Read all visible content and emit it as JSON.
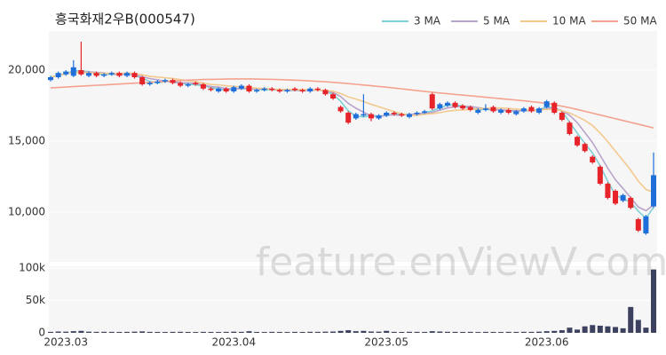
{
  "watermark": "feature.enViewV.com",
  "chart_data": [
    {
      "type": "candlestick",
      "title": "흥국화재2우B(000547)",
      "up_color": "#1e6fd9",
      "down_color": "#e8242b",
      "open": [
        19300,
        19500,
        19700,
        19600,
        20000,
        19600,
        19800,
        19600,
        19700,
        19800,
        19600,
        19800,
        19500,
        19000,
        19100,
        19200,
        19300,
        19100,
        18900,
        19100,
        19000,
        18700,
        18500,
        18700,
        18500,
        18700,
        18900,
        18500,
        18600,
        18700,
        18600,
        18500,
        18700,
        18600,
        18500,
        18700,
        18600,
        18300,
        17400,
        17000,
        16600,
        16800,
        16900,
        16600,
        16800,
        17000,
        16900,
        16700,
        16900,
        17000,
        18300,
        17300,
        17500,
        17700,
        17500,
        17400,
        17000,
        17200,
        17400,
        17000,
        17200,
        16900,
        17100,
        17400,
        17000,
        17400,
        17700,
        17000,
        16300,
        15300,
        14800,
        13900,
        13200,
        12000,
        11500,
        10800,
        11000,
        9500,
        8500,
        10400
      ],
      "high": [
        19600,
        19900,
        20000,
        20700,
        22000,
        19900,
        19900,
        19800,
        19900,
        19900,
        19900,
        19900,
        19600,
        19200,
        19300,
        19400,
        19400,
        19200,
        19100,
        19200,
        19100,
        18800,
        18800,
        18800,
        18900,
        19000,
        19000,
        18700,
        18800,
        18800,
        18700,
        18700,
        18800,
        18700,
        18800,
        18800,
        18700,
        18400,
        17500,
        17100,
        17000,
        18300,
        17000,
        16900,
        17100,
        17100,
        17000,
        17000,
        17100,
        17200,
        18400,
        17700,
        17800,
        17800,
        17600,
        17500,
        17300,
        17600,
        17500,
        17300,
        17300,
        17200,
        17400,
        17500,
        17400,
        17900,
        17800,
        17100,
        16400,
        15400,
        14900,
        14000,
        13300,
        12100,
        11600,
        11300,
        11100,
        9600,
        9800,
        14200
      ],
      "low": [
        19200,
        19400,
        19600,
        19500,
        19600,
        19500,
        19500,
        19500,
        19600,
        19500,
        19500,
        19400,
        18900,
        18900,
        19000,
        19100,
        19000,
        18800,
        18800,
        18900,
        18600,
        18500,
        18400,
        18400,
        18400,
        18600,
        18400,
        18400,
        18500,
        18500,
        18400,
        18400,
        18500,
        18400,
        18400,
        18500,
        18200,
        17900,
        17000,
        16200,
        16500,
        16700,
        16400,
        16500,
        16700,
        16800,
        16700,
        16600,
        16800,
        16900,
        17200,
        17200,
        17400,
        17300,
        17200,
        17100,
        16900,
        17100,
        17000,
        16900,
        16900,
        16800,
        17000,
        17000,
        16900,
        17300,
        16900,
        16400,
        15400,
        14600,
        14200,
        13400,
        11900,
        10900,
        10500,
        10700,
        10200,
        8600,
        8400,
        10300
      ],
      "close": [
        19500,
        19800,
        19900,
        20200,
        19700,
        19800,
        19600,
        19700,
        19800,
        19600,
        19800,
        19500,
        19000,
        19100,
        19200,
        19300,
        19100,
        18900,
        19000,
        19000,
        18700,
        18600,
        18700,
        18500,
        18800,
        18900,
        18500,
        18600,
        18700,
        18600,
        18500,
        18600,
        18600,
        18500,
        18700,
        18600,
        18300,
        18000,
        17100,
        16300,
        16900,
        16900,
        16600,
        16800,
        17000,
        16900,
        16800,
        16900,
        17000,
        17100,
        17300,
        17600,
        17700,
        17400,
        17300,
        17200,
        17200,
        17300,
        17100,
        17200,
        17000,
        17100,
        17300,
        17100,
        17300,
        17800,
        17000,
        16500,
        15500,
        14700,
        14300,
        13500,
        12000,
        11000,
        10600,
        11200,
        10300,
        8700,
        9700,
        12600
      ],
      "series": [
        {
          "name": "3 MA",
          "color": "#7fd0d6",
          "values": [
            19500,
            19650,
            19733,
            19967,
            19933,
            19900,
            19700,
            19700,
            19700,
            19700,
            19733,
            19633,
            19433,
            19200,
            19100,
            19200,
            19200,
            19100,
            19000,
            18967,
            18900,
            18767,
            18667,
            18600,
            18667,
            18733,
            18733,
            18667,
            18600,
            18633,
            18600,
            18567,
            18567,
            18567,
            18600,
            18600,
            18533,
            18300,
            17800,
            17133,
            16767,
            16700,
            16800,
            16767,
            16800,
            16900,
            16900,
            16867,
            16900,
            17000,
            17133,
            17333,
            17533,
            17567,
            17467,
            17300,
            17233,
            17233,
            17200,
            17200,
            17100,
            17100,
            17133,
            17167,
            17233,
            17400,
            17367,
            17100,
            16333,
            15567,
            14833,
            14167,
            13267,
            12167,
            11200,
            10933,
            10700,
            10067,
            9567,
            10333
          ]
        },
        {
          "name": "5 MA",
          "color": "#b9a4cc",
          "values": [
            19500,
            19650,
            19733,
            19850,
            19820,
            19880,
            19840,
            19800,
            19720,
            19700,
            19700,
            19680,
            19540,
            19400,
            19320,
            19220,
            19140,
            19100,
            19100,
            19060,
            18940,
            18840,
            18800,
            18700,
            18660,
            18700,
            18680,
            18660,
            18700,
            18660,
            18580,
            18600,
            18600,
            18560,
            18580,
            18600,
            18540,
            18420,
            18140,
            17660,
            17320,
            17040,
            16760,
            16700,
            16840,
            16840,
            16820,
            16880,
            16920,
            16940,
            17020,
            17180,
            17340,
            17420,
            17460,
            17440,
            17360,
            17280,
            17220,
            17200,
            17160,
            17140,
            17140,
            17140,
            17160,
            17320,
            17300,
            17140,
            16820,
            16300,
            15600,
            14900,
            14000,
            13100,
            12280,
            11660,
            11020,
            10360,
            10100,
            10500
          ]
        },
        {
          "name": "10 MA",
          "color": "#f3c98e",
          "values": [
            19500,
            19650,
            19733,
            19850,
            19820,
            19817,
            19786,
            19775,
            19778,
            19760,
            19790,
            19760,
            19670,
            19560,
            19510,
            19460,
            19410,
            19330,
            19250,
            19190,
            19080,
            18990,
            18960,
            18900,
            18860,
            18820,
            18760,
            18730,
            18700,
            18660,
            18640,
            18640,
            18630,
            18630,
            18620,
            18590,
            18570,
            18510,
            18350,
            18120,
            17960,
            17790,
            17590,
            17420,
            17250,
            17080,
            16930,
            16820,
            16810,
            16890,
            16930,
            17000,
            17110,
            17170,
            17200,
            17230,
            17270,
            17310,
            17320,
            17330,
            17300,
            17250,
            17210,
            17180,
            17180,
            17240,
            17220,
            17140,
            16980,
            16730,
            16460,
            16100,
            15570,
            14960,
            14290,
            13630,
            12960,
            12180,
            11600,
            11390
          ]
        },
        {
          "name": "50 MA",
          "color": "#f4a28e",
          "values": [
            18750,
            18780,
            18810,
            18840,
            18870,
            18900,
            18930,
            18960,
            18990,
            19020,
            19050,
            19080,
            19110,
            19140,
            19170,
            19200,
            19230,
            19260,
            19290,
            19320,
            19340,
            19350,
            19360,
            19370,
            19380,
            19380,
            19380,
            19370,
            19360,
            19350,
            19330,
            19310,
            19290,
            19270,
            19240,
            19210,
            19180,
            19140,
            19100,
            19050,
            19000,
            18950,
            18900,
            18850,
            18800,
            18740,
            18680,
            18620,
            18560,
            18500,
            18440,
            18390,
            18340,
            18290,
            18240,
            18190,
            18140,
            18090,
            18040,
            17990,
            17940,
            17890,
            17840,
            17780,
            17720,
            17650,
            17560,
            17460,
            17350,
            17230,
            17100,
            16970,
            16840,
            16710,
            16580,
            16450,
            16320,
            16190,
            16060,
            15930
          ]
        }
      ],
      "ylim": [
        6500,
        22750
      ],
      "yticks": [
        {
          "value": 10000,
          "label": "10,000"
        },
        {
          "value": 15000,
          "label": "15,000"
        },
        {
          "value": 20000,
          "label": "20,000"
        }
      ],
      "grid": true
    },
    {
      "type": "bar",
      "color": "#3d4160",
      "categories": [
        null,
        null,
        "2023.03",
        null,
        null,
        null,
        null,
        null,
        null,
        null,
        null,
        null,
        null,
        null,
        null,
        null,
        null,
        null,
        null,
        null,
        null,
        null,
        null,
        null,
        "2023.04",
        null,
        null,
        null,
        null,
        null,
        null,
        null,
        null,
        null,
        null,
        null,
        null,
        null,
        null,
        null,
        null,
        null,
        null,
        null,
        "2023.05",
        null,
        null,
        null,
        null,
        null,
        null,
        null,
        null,
        null,
        null,
        null,
        null,
        null,
        null,
        null,
        null,
        null,
        null,
        null,
        null,
        "2023.06",
        null,
        null,
        null,
        null,
        null,
        null,
        null,
        null,
        null,
        null,
        null,
        null,
        null,
        null
      ],
      "values": [
        1500,
        2000,
        1800,
        2500,
        3000,
        1800,
        1500,
        1600,
        1500,
        1400,
        1500,
        1800,
        2200,
        1500,
        1400,
        1300,
        1500,
        1600,
        1400,
        1300,
        1500,
        1400,
        1300,
        1500,
        1800,
        1500,
        2500,
        1400,
        1300,
        1500,
        1400,
        1300,
        1500,
        1400,
        1600,
        1500,
        1800,
        2000,
        3000,
        4000,
        2500,
        3000,
        2000,
        1800,
        3000,
        1500,
        1400,
        1600,
        1500,
        1400,
        2500,
        2000,
        1600,
        1500,
        1400,
        1500,
        1300,
        1500,
        1400,
        1300,
        1500,
        1400,
        1600,
        1500,
        1800,
        2500,
        3000,
        4000,
        8000,
        5000,
        10000,
        12000,
        11000,
        10000,
        9000,
        7000,
        40000,
        20000,
        8000,
        98000
      ],
      "ylim": [
        0,
        103000
      ],
      "yticks": [
        0,
        {
          "value": 50000,
          "label": "50k"
        },
        {
          "value": 100000,
          "label": "100k"
        }
      ],
      "grid": true
    }
  ]
}
